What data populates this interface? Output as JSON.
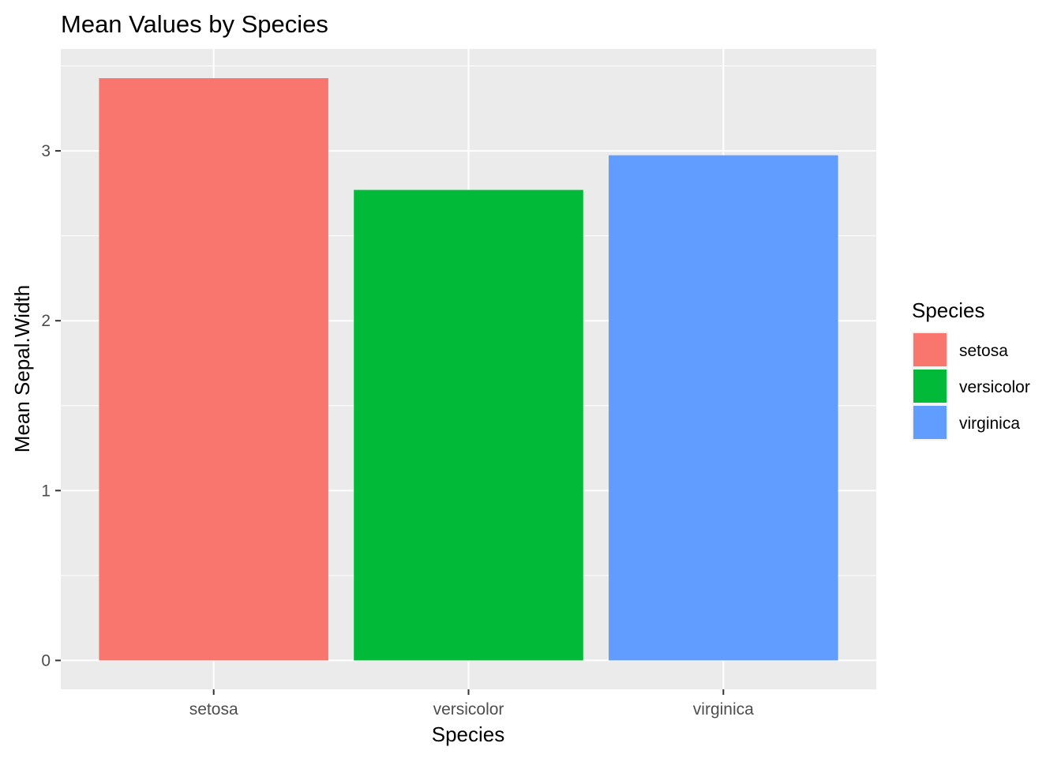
{
  "chart_data": {
    "type": "bar",
    "title": "Mean Values by Species",
    "xlabel": "Species",
    "ylabel": "Mean Sepal.Width",
    "categories": [
      "setosa",
      "versicolor",
      "virginica"
    ],
    "values": [
      3.428,
      2.77,
      2.974
    ],
    "colors": [
      "#F8766D",
      "#00BA38",
      "#619CFF"
    ],
    "ylim": [
      -0.17,
      3.6
    ],
    "yticks": [
      0,
      1,
      2,
      3
    ],
    "y_tick_labels": [
      "0",
      "1",
      "2",
      "3"
    ],
    "grid": true,
    "panel_background": "#EBEBEB",
    "legend": {
      "title": "Species",
      "position": "right",
      "items": [
        "setosa",
        "versicolor",
        "virginica"
      ]
    }
  }
}
